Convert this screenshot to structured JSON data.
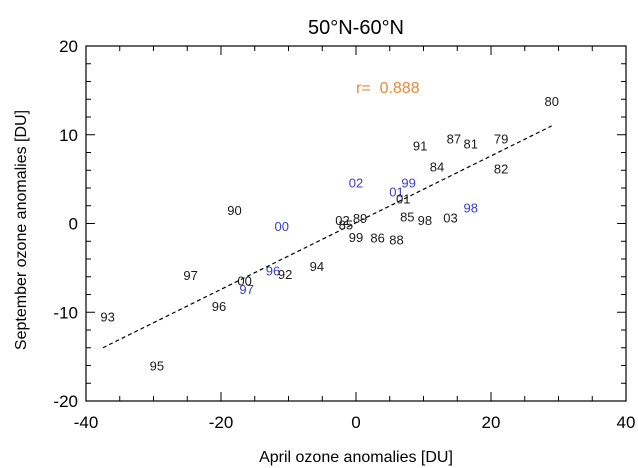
{
  "chart_data": {
    "type": "scatter",
    "title": "50°N-60°N",
    "xlabel": "April ozone anomalies [DU]",
    "ylabel": "September ozone anomalies [DU]",
    "xlim": [
      -40,
      40
    ],
    "ylim": [
      -20,
      20
    ],
    "x_ticks": [
      -40,
      -20,
      0,
      20,
      40
    ],
    "y_ticks": [
      -20,
      -10,
      0,
      10,
      20
    ],
    "x_tick_labels": [
      "-40",
      "-20",
      "0",
      "20",
      "40"
    ],
    "y_tick_labels": [
      "-20",
      "-10",
      "0",
      "10",
      "20"
    ],
    "x_minor_step": 5,
    "y_minor_step": 2,
    "grid": false,
    "correlation_label": "r=  0.888",
    "colors": {
      "black_points": "#1a1a1a",
      "blue_points": "#3c3cc8",
      "annotation": "#e8893a",
      "axes": "#000000"
    },
    "regression_line": {
      "x": [
        -37.5,
        29
      ],
      "y": [
        -14.0,
        11.0
      ],
      "style": "dashed"
    },
    "points": [
      {
        "label": "80",
        "x": 29.0,
        "y": 13.8,
        "color": "black"
      },
      {
        "label": "91",
        "x": 9.5,
        "y": 8.8,
        "color": "black"
      },
      {
        "label": "87",
        "x": 14.5,
        "y": 9.6,
        "color": "black"
      },
      {
        "label": "81",
        "x": 17.0,
        "y": 9.0,
        "color": "black"
      },
      {
        "label": "79",
        "x": 21.5,
        "y": 9.6,
        "color": "black"
      },
      {
        "label": "84",
        "x": 12.0,
        "y": 6.4,
        "color": "black"
      },
      {
        "label": "82",
        "x": 21.5,
        "y": 6.2,
        "color": "black"
      },
      {
        "label": "02",
        "x": 0.0,
        "y": 4.6,
        "color": "blue"
      },
      {
        "label": "01",
        "x": 6.0,
        "y": 3.6,
        "color": "blue"
      },
      {
        "label": "99",
        "x": 7.8,
        "y": 4.6,
        "color": "blue"
      },
      {
        "label": "01",
        "x": 7.0,
        "y": 2.8,
        "color": "black"
      },
      {
        "label": "90",
        "x": -18.0,
        "y": 1.5,
        "color": "black"
      },
      {
        "label": "00",
        "x": -11.0,
        "y": -0.3,
        "color": "blue"
      },
      {
        "label": "98",
        "x": 17.0,
        "y": 1.8,
        "color": "blue"
      },
      {
        "label": "02",
        "x": -2.0,
        "y": 0.4,
        "color": "black"
      },
      {
        "label": "89",
        "x": 0.6,
        "y": 0.6,
        "color": "black"
      },
      {
        "label": "85",
        "x": -1.5,
        "y": -0.1,
        "color": "black"
      },
      {
        "label": "85",
        "x": 7.6,
        "y": 0.8,
        "color": "black"
      },
      {
        "label": "98",
        "x": 10.2,
        "y": 0.4,
        "color": "black"
      },
      {
        "label": "03",
        "x": 14.0,
        "y": 0.7,
        "color": "black"
      },
      {
        "label": "99",
        "x": 0.0,
        "y": -1.5,
        "color": "black"
      },
      {
        "label": "86",
        "x": 3.2,
        "y": -1.6,
        "color": "black"
      },
      {
        "label": "88",
        "x": 6.0,
        "y": -1.8,
        "color": "black"
      },
      {
        "label": "94",
        "x": -5.8,
        "y": -4.8,
        "color": "black"
      },
      {
        "label": "97",
        "x": -24.5,
        "y": -5.8,
        "color": "black"
      },
      {
        "label": "00",
        "x": -16.5,
        "y": -6.4,
        "color": "black"
      },
      {
        "label": "96",
        "x": -12.3,
        "y": -5.3,
        "color": "blue"
      },
      {
        "label": "92",
        "x": -10.5,
        "y": -5.7,
        "color": "black"
      },
      {
        "label": "97",
        "x": -16.2,
        "y": -7.4,
        "color": "blue"
      },
      {
        "label": "96",
        "x": -20.3,
        "y": -9.3,
        "color": "black"
      },
      {
        "label": "93",
        "x": -36.8,
        "y": -10.5,
        "color": "black"
      },
      {
        "label": "95",
        "x": -29.5,
        "y": -16.0,
        "color": "black"
      }
    ]
  }
}
